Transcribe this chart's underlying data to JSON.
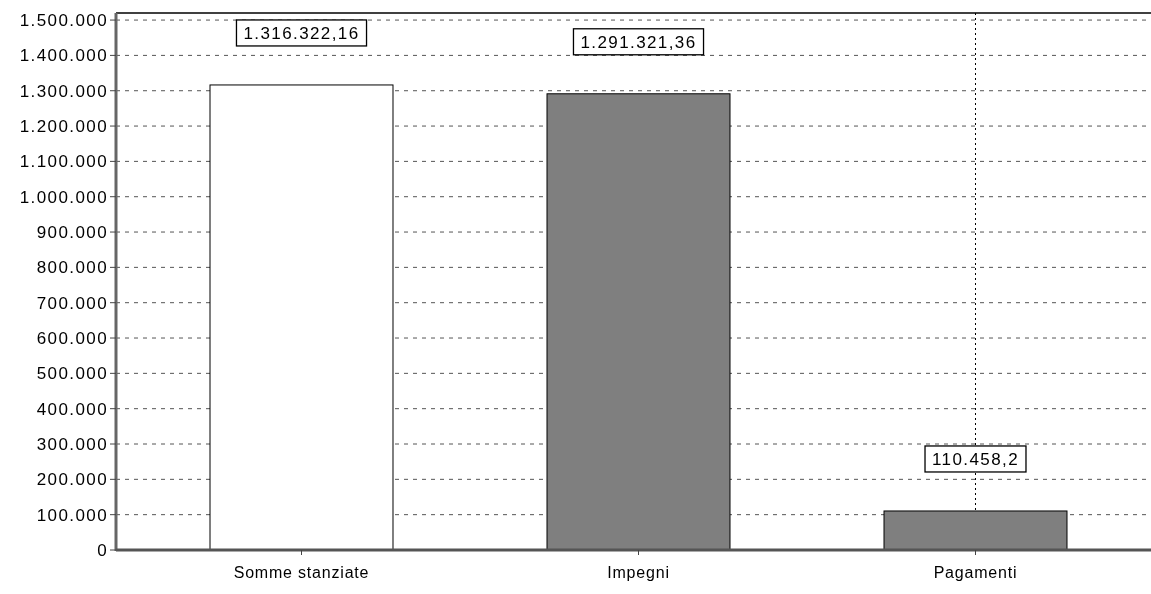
{
  "chart_data": {
    "type": "bar",
    "categories": [
      "Somme stanziate",
      "Impegni",
      "Pagamenti"
    ],
    "values": [
      1316322.16,
      1291321.36,
      110458.2
    ],
    "colors": [
      "#ffffff",
      "#7f7f7f",
      "#7f7f7f"
    ],
    "value_labels": [
      "1.316.322,16",
      "1.291.321,36",
      "110.458,2"
    ],
    "ylim": [
      0,
      1520000
    ],
    "yticks": [
      0,
      {
        "value": 100000,
        "label": "100.000"
      },
      {
        "value": 200000,
        "label": "200.000"
      },
      {
        "value": 300000,
        "label": "300.000"
      },
      {
        "value": 400000,
        "label": "400.000"
      },
      {
        "value": 500000,
        "label": "500.000"
      },
      {
        "value": 600000,
        "label": "600.000"
      },
      {
        "value": 700000,
        "label": "700.000"
      },
      {
        "value": 800000,
        "label": "800.000"
      },
      {
        "value": 900000,
        "label": "900.000"
      },
      {
        "value": 1000000,
        "label": "1.000.000"
      },
      {
        "value": 1100000,
        "label": "1.100.000"
      },
      {
        "value": 1200000,
        "label": "1.200.000"
      },
      {
        "value": 1300000,
        "label": "1.300.000"
      },
      {
        "value": 1400000,
        "label": "1.400.000"
      },
      {
        "value": 1500000,
        "label": "1.500.000"
      }
    ],
    "grid": "y",
    "ref_lines": [
      {
        "axis": "x",
        "value": "Pagamenti",
        "color": "#000000",
        "line_style": "dotted"
      }
    ]
  }
}
